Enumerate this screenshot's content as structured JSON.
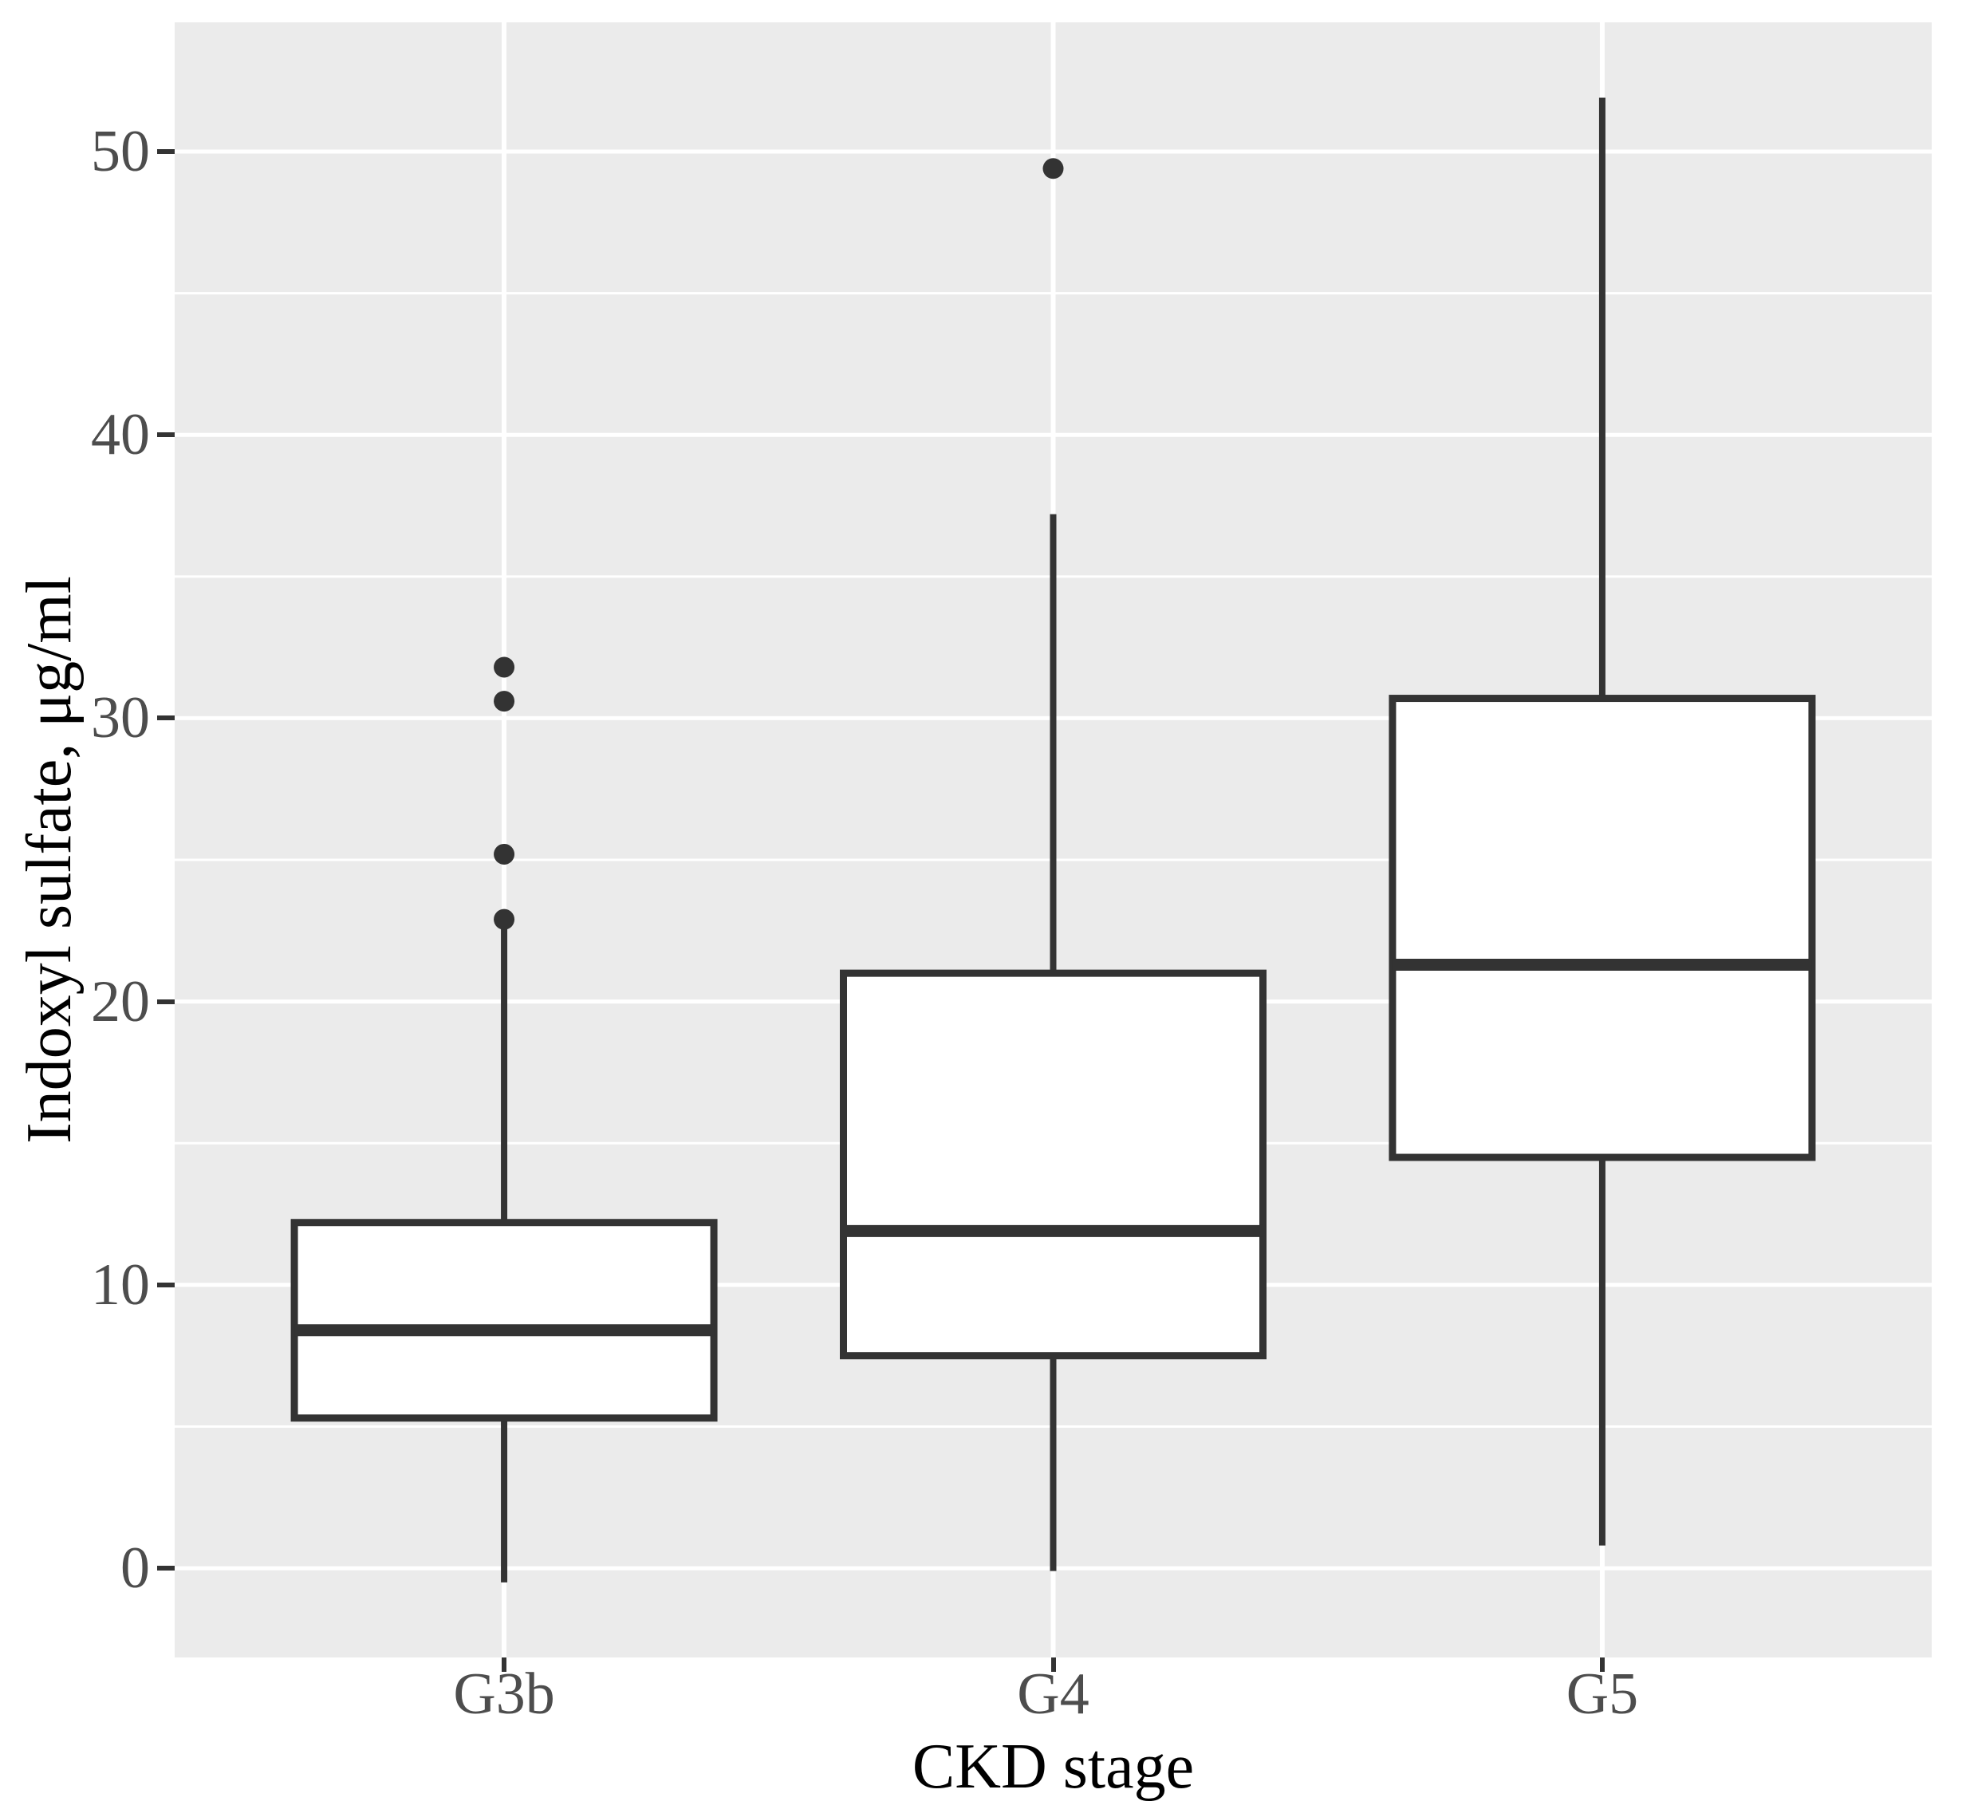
{
  "chart_data": {
    "type": "boxplot",
    "title": "",
    "xlabel": "CKD stage",
    "ylabel": "Indoxyl sulfate, μg/ml",
    "categories": [
      "G3b",
      "G4",
      "G5"
    ],
    "ylim": [
      -3.15,
      54.56
    ],
    "y_major_ticks": [
      0,
      10,
      20,
      30,
      40,
      50
    ],
    "y_tick_labels": [
      "0",
      "10",
      "20",
      "30",
      "40",
      "50"
    ],
    "y_minor_gridlines": [
      5,
      15,
      25,
      35,
      45
    ],
    "legend_position": "none",
    "grid": "horizontal white major and minor lines; vertical white line at each category center",
    "series": [
      {
        "name": "G3b",
        "whisker_low": -0.5,
        "q1": 5.3,
        "median": 8.4,
        "q3": 12.2,
        "whisker_high": 22.6,
        "outliers": [
          22.9,
          25.2,
          30.6,
          31.8
        ]
      },
      {
        "name": "G4",
        "whisker_low": -0.1,
        "q1": 7.5,
        "median": 11.9,
        "q3": 21.0,
        "whisker_high": 37.2,
        "outliers": [
          49.4
        ]
      },
      {
        "name": "G5",
        "whisker_low": 0.8,
        "q1": 14.5,
        "median": 21.3,
        "q3": 30.7,
        "whisker_high": 51.9,
        "outliers": []
      }
    ]
  },
  "style": {
    "panel_bg": "#EBEBEB",
    "grid_color": "#FFFFFF",
    "box_stroke": "#333333",
    "box_fill": "#FFFFFF",
    "median_color": "#333333",
    "outlier_color": "#333333",
    "tick_mark_color": "#333333",
    "tick_label_color": "#4D4D4D",
    "axis_title_color": "#000000"
  }
}
